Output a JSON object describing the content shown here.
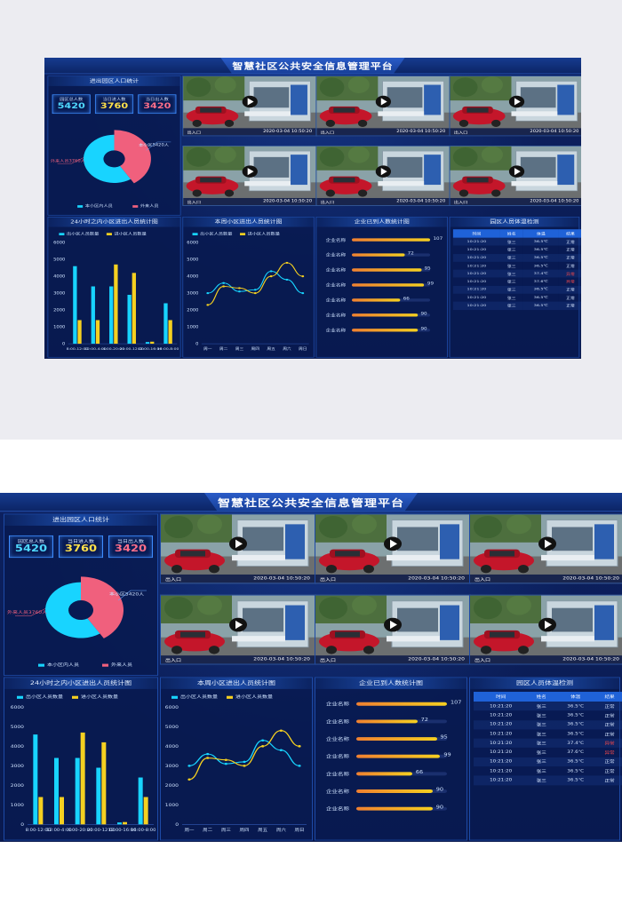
{
  "title": "智慧社区公共安全信息管理平台",
  "colors": {
    "accent_cyan": "#18d4ff",
    "accent_pink": "#f0607d",
    "accent_yellow": "#f5d020",
    "accent_orange": "#f08030",
    "abnormal": "#ff4b4b"
  },
  "population": {
    "title": "进出园区人口统计",
    "stats": [
      {
        "label": "园区总人数",
        "value": "5420",
        "color": "#4fd8ff"
      },
      {
        "label": "当日进人数",
        "value": "3760",
        "color": "#ffe14a"
      },
      {
        "label": "当日出人数",
        "value": "3420",
        "color": "#ff6f8a"
      }
    ],
    "donut_labels": {
      "outsiders": "外来人员3760人",
      "residents": "本小区5420人"
    },
    "legend": [
      {
        "label": "本小区内人员",
        "color": "#18d4ff"
      },
      {
        "label": "外来人员",
        "color": "#f0607d"
      }
    ]
  },
  "videos": [
    {
      "location": "出入口",
      "time": "2020-03-04  10:50:20"
    },
    {
      "location": "出入口",
      "time": "2020-03-04  10:50:20"
    },
    {
      "location": "出入口",
      "time": "2020-03-04  10:50:20"
    },
    {
      "location": "出入口",
      "time": "2020-03-04  10:50:20"
    },
    {
      "location": "出入口",
      "time": "2020-03-04  10:50:20"
    },
    {
      "location": "出入口",
      "time": "2020-03-04  10:50:20"
    }
  ],
  "icons": {
    "play": "play-icon",
    "video": "camera-feed-image"
  },
  "bar_panel": {
    "title": "24小时之内小区进出人员统计图",
    "legend": [
      "出小区人员数量",
      "进小区人员数量"
    ]
  },
  "line_panel": {
    "title": "本周小区进出人员统计图",
    "legend": [
      "出小区人员数量",
      "进小区人员数量"
    ]
  },
  "rank_panel": {
    "title": "企业已到人数统计图",
    "rows": [
      {
        "name": "企业名称",
        "value": "107"
      },
      {
        "name": "企业名称",
        "value": "72"
      },
      {
        "name": "企业名称",
        "value": "95"
      },
      {
        "name": "企业名称",
        "value": "99"
      },
      {
        "name": "企业名称",
        "value": "66"
      },
      {
        "name": "企业名称",
        "value": "90"
      },
      {
        "name": "企业名称",
        "value": "90"
      }
    ]
  },
  "temp_panel": {
    "title": "园区人员体温检测",
    "columns": [
      "时间",
      "姓名",
      "体温",
      "结果"
    ],
    "rows": [
      [
        "10:21:20",
        "张三",
        "36.5℃",
        "正常"
      ],
      [
        "10:21:20",
        "张三",
        "36.5℃",
        "正常"
      ],
      [
        "10:21:20",
        "张三",
        "36.5℃",
        "正常"
      ],
      [
        "10:21:20",
        "张三",
        "36.5℃",
        "正常"
      ],
      [
        "10:21:20",
        "张三",
        "37.4℃",
        "异常"
      ],
      [
        "10:21:20",
        "张三",
        "37.6℃",
        "异常"
      ],
      [
        "10:21:20",
        "张三",
        "36.5℃",
        "正常"
      ],
      [
        "10:21:20",
        "张三",
        "36.5℃",
        "正常"
      ],
      [
        "10:21:20",
        "张三",
        "36.5℃",
        "正常"
      ]
    ]
  },
  "chart_data": [
    {
      "type": "pie",
      "categories": [
        "本小区内人员",
        "外来人员"
      ],
      "values": [
        5420,
        3760
      ],
      "labels": [
        "本小区5420人",
        "外来人员3760人"
      ]
    },
    {
      "type": "bar",
      "title": "24小时之内小区进出人员统计图",
      "categories": [
        "8:00-12:00",
        "12:00-4:00",
        "4:00-20:00",
        "20:00-12:00",
        "12:00-16:00",
        "16:00-8:00"
      ],
      "series": [
        {
          "name": "出小区人员数量",
          "values": [
            4600,
            3400,
            3400,
            2900,
            100,
            2400
          ]
        },
        {
          "name": "进小区人员数量",
          "values": [
            1400,
            1400,
            4700,
            4200,
            120,
            1400
          ]
        }
      ],
      "yticks": [
        0,
        1000,
        2000,
        3000,
        4000,
        5000,
        6000
      ],
      "ylim": [
        0,
        6000
      ]
    },
    {
      "type": "line",
      "title": "本周小区进出人员统计图",
      "categories": [
        "周一",
        "周二",
        "周三",
        "周四",
        "周五",
        "周六",
        "周日"
      ],
      "series": [
        {
          "name": "出小区人员数量",
          "values": [
            3000,
            3600,
            3100,
            3200,
            4300,
            3800,
            3000
          ]
        },
        {
          "name": "进小区人员数量",
          "values": [
            2300,
            3400,
            3300,
            3000,
            4000,
            4800,
            4000
          ]
        }
      ],
      "yticks": [
        0,
        1000,
        2000,
        3000,
        4000,
        5000,
        6000
      ],
      "ylim": [
        0,
        6000
      ]
    },
    {
      "type": "bar",
      "title": "企业已到人数统计图",
      "categories": [
        "企业名称",
        "企业名称",
        "企业名称",
        "企业名称",
        "企业名称",
        "企业名称",
        "企业名称"
      ],
      "values": [
        107,
        72,
        95,
        99,
        66,
        90,
        90
      ],
      "xlim": [
        0,
        107
      ]
    }
  ]
}
